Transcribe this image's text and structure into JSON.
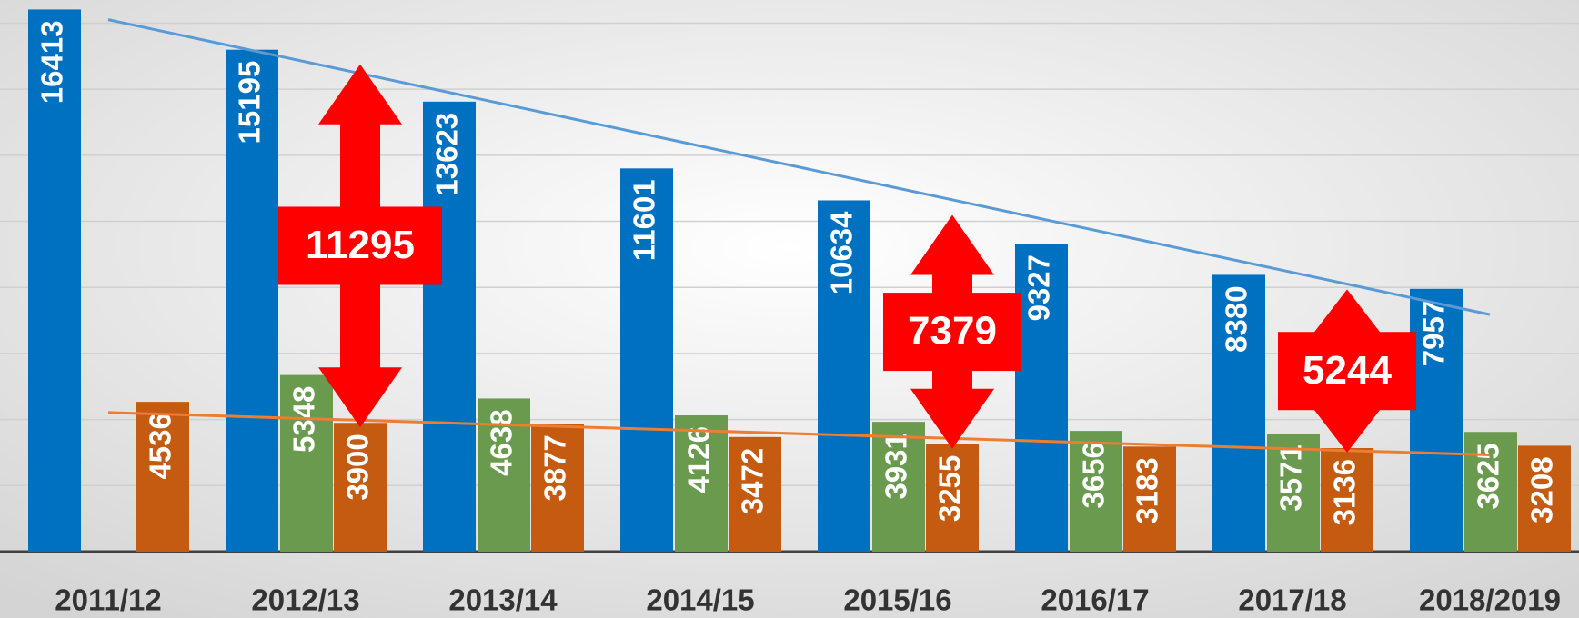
{
  "chart_data": {
    "type": "bar",
    "categories": [
      "2011/12",
      "2012/13",
      "2013/14",
      "2014/15",
      "2015/16",
      "2016/17",
      "2017/18",
      "2018/2019"
    ],
    "series": [
      {
        "color": "#0070c0",
        "values": [
          16413,
          15195,
          13623,
          11601,
          10634,
          9327,
          8380,
          7957
        ],
        "trendline_color": "#5b9bd5"
      },
      {
        "color": "#6a9a4e",
        "values": [
          null,
          5348,
          4638,
          4126,
          3931,
          3656,
          3571,
          3625
        ]
      },
      {
        "color": "#c55a11",
        "values": [
          4536,
          3900,
          3877,
          3472,
          3255,
          3183,
          3136,
          3208
        ],
        "trendline_color": "#ed7d31"
      }
    ],
    "ylim": [
      0,
      16700
    ],
    "yticks": [
      0,
      2000,
      4000,
      6000,
      8000,
      10000,
      12000,
      14000,
      16000
    ],
    "grid": true,
    "annotations": [
      {
        "text": "11295",
        "category": "2012/13",
        "color": "#ff0000"
      },
      {
        "text": "7379",
        "category": "2015/16",
        "color": "#ff0000"
      },
      {
        "text": "5244",
        "category": "2017/18",
        "color": "#ff0000"
      }
    ]
  }
}
